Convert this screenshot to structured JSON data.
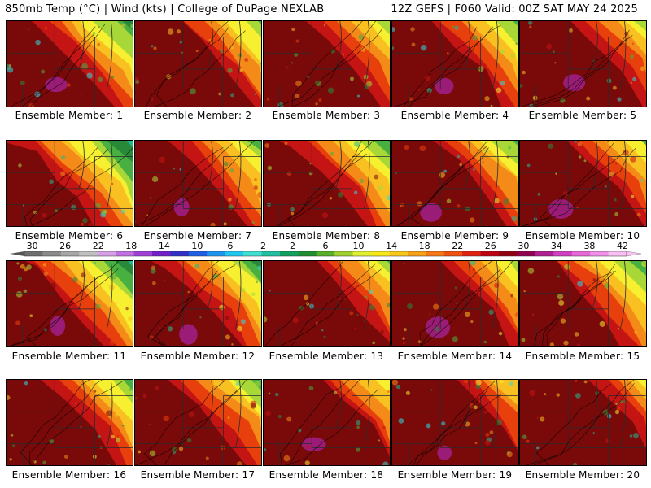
{
  "header": {
    "left": "850mb Temp (°C) | Wind (kts) | College of DuPage NEXLAB",
    "right": "12Z GEFS | F060 Valid: 00Z SAT MAY 24 2025"
  },
  "members": [
    {
      "label": "Ensemble Member: 1",
      "warm_extent": 0.5,
      "has_magenta": true
    },
    {
      "label": "Ensemble Member: 2",
      "warm_extent": 0.56,
      "has_magenta": false
    },
    {
      "label": "Ensemble Member: 3",
      "warm_extent": 0.6,
      "has_magenta": false
    },
    {
      "label": "Ensemble Member: 4",
      "warm_extent": 0.55,
      "has_magenta": true
    },
    {
      "label": "Ensemble Member: 5",
      "warm_extent": 0.62,
      "has_magenta": true
    },
    {
      "label": "Ensemble Member: 6",
      "warm_extent": 0.42,
      "has_magenta": false
    },
    {
      "label": "Ensemble Member: 7",
      "warm_extent": 0.55,
      "has_magenta": true
    },
    {
      "label": "Ensemble Member: 8",
      "warm_extent": 0.5,
      "has_magenta": false
    },
    {
      "label": "Ensemble Member: 9",
      "warm_extent": 0.55,
      "has_magenta": true
    },
    {
      "label": "Ensemble Member: 10",
      "warm_extent": 0.6,
      "has_magenta": true
    },
    {
      "label": "Ensemble Member: 11",
      "warm_extent": 0.45,
      "has_magenta": true
    },
    {
      "label": "Ensemble Member: 12",
      "warm_extent": 0.5,
      "has_magenta": true
    },
    {
      "label": "Ensemble Member: 13",
      "warm_extent": 0.62,
      "has_magenta": false
    },
    {
      "label": "Ensemble Member: 14",
      "warm_extent": 0.6,
      "has_magenta": true
    },
    {
      "label": "Ensemble Member: 15",
      "warm_extent": 0.5,
      "has_magenta": false
    },
    {
      "label": "Ensemble Member: 16",
      "warm_extent": 0.55,
      "has_magenta": false
    },
    {
      "label": "Ensemble Member: 17",
      "warm_extent": 0.55,
      "has_magenta": false
    },
    {
      "label": "Ensemble Member: 18",
      "warm_extent": 0.65,
      "has_magenta": true
    },
    {
      "label": "Ensemble Member: 19",
      "warm_extent": 0.68,
      "has_magenta": true
    },
    {
      "label": "Ensemble Member: 20",
      "warm_extent": 0.7,
      "has_magenta": false
    }
  ],
  "colorbar": {
    "labels": [
      "-30",
      "-26",
      "-22",
      "-18",
      "-14",
      "-10",
      "-6",
      "-2",
      "2",
      "6",
      "10",
      "14",
      "18",
      "22",
      "26",
      "30",
      "34",
      "38",
      "42"
    ],
    "colors": [
      "#6e6e6e",
      "#8a8a8a",
      "#a6a6a6",
      "#c0c0c0",
      "#d6a0e6",
      "#c070e0",
      "#a040d8",
      "#7020c8",
      "#3030c8",
      "#1e5fe6",
      "#1e96f0",
      "#20c8f0",
      "#40e0d0",
      "#20c0a0",
      "#10a060",
      "#208e30",
      "#58b028",
      "#a0d030",
      "#e0f030",
      "#f8e818",
      "#f8c818",
      "#f8a018",
      "#f87818",
      "#f05010",
      "#e02010",
      "#c00010",
      "#900010",
      "#900050",
      "#b02090",
      "#d040c0",
      "#e868d8",
      "#f090e8",
      "#f8c0f0"
    ]
  },
  "colors": {
    "deep_red": "#7a0a0a",
    "red": "#c41414",
    "orange_red": "#e8400c",
    "orange": "#f48a18",
    "yellow_orange": "#f8c020",
    "yellow": "#f6f030",
    "yellow_green": "#a8d838",
    "green": "#48b040",
    "dark_green": "#288a38",
    "teal_green": "#20b890",
    "cyan": "#30d8e0",
    "magenta": "#a0208a"
  }
}
